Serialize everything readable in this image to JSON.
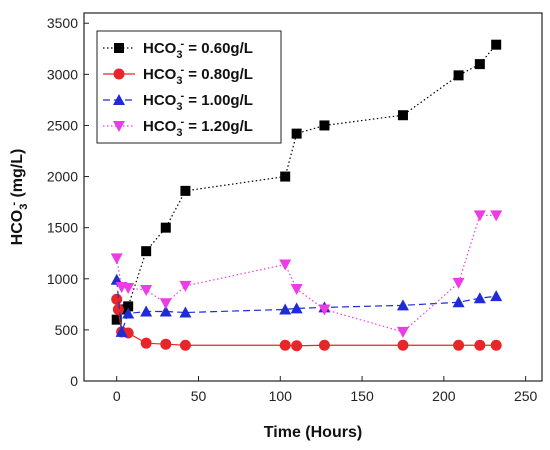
{
  "chart_data": {
    "type": "line",
    "xlabel": "Time (Hours)",
    "ylabel": {
      "base": "HCO",
      "sub": "3",
      "sup": "-",
      "rest": " (mg/L)"
    },
    "xlim": [
      -20,
      260
    ],
    "ylim": [
      0,
      3600
    ],
    "x_ticks": [
      0,
      50,
      100,
      150,
      200,
      250
    ],
    "y_ticks": [
      0,
      500,
      1000,
      1500,
      2000,
      2500,
      3000,
      3500
    ],
    "legend_position": "top-left",
    "series": [
      {
        "legend": {
          "base": "HCO",
          "sub": "3",
          "sup": "-",
          "rest": " = 0.60g/L"
        },
        "color": "#000000",
        "marker": "square",
        "line_style": "dotted",
        "x": [
          0,
          3,
          7,
          18,
          30,
          42,
          103,
          110,
          127,
          175,
          209,
          222,
          232
        ],
        "y": [
          600,
          700,
          730,
          1270,
          1500,
          1860,
          2000,
          2420,
          2500,
          2600,
          2990,
          3100,
          3290
        ]
      },
      {
        "legend": {
          "base": "HCO",
          "sub": "3",
          "sup": "-",
          "rest": " = 0.80g/L"
        },
        "color": "#e8262a",
        "marker": "circle",
        "line_style": "solid",
        "x": [
          0,
          1,
          3,
          7,
          18,
          30,
          42,
          103,
          110,
          127,
          175,
          209,
          222,
          232
        ],
        "y": [
          800,
          700,
          480,
          470,
          370,
          360,
          350,
          350,
          345,
          350,
          350,
          350,
          350,
          350
        ]
      },
      {
        "legend": {
          "base": "HCO",
          "sub": "3",
          "sup": "-",
          "rest": " = 1.00g/L"
        },
        "color": "#1f2cd6",
        "marker": "triangle-up",
        "line_style": "dashed",
        "x": [
          0,
          3,
          7,
          18,
          30,
          42,
          103,
          110,
          127,
          175,
          209,
          222,
          232
        ],
        "y": [
          990,
          480,
          660,
          680,
          680,
          670,
          700,
          710,
          720,
          740,
          770,
          810,
          830
        ]
      },
      {
        "legend": {
          "base": "HCO",
          "sub": "3",
          "sup": "-",
          "rest": " = 1.20g/L"
        },
        "color": "#ee3be8",
        "marker": "triangle-down",
        "line_style": "dotted",
        "x": [
          0,
          3,
          7,
          18,
          30,
          42,
          103,
          110,
          127,
          175,
          209,
          222,
          232
        ],
        "y": [
          1200,
          920,
          910,
          890,
          760,
          930,
          1140,
          900,
          700,
          480,
          960,
          1620,
          1620
        ]
      }
    ]
  }
}
